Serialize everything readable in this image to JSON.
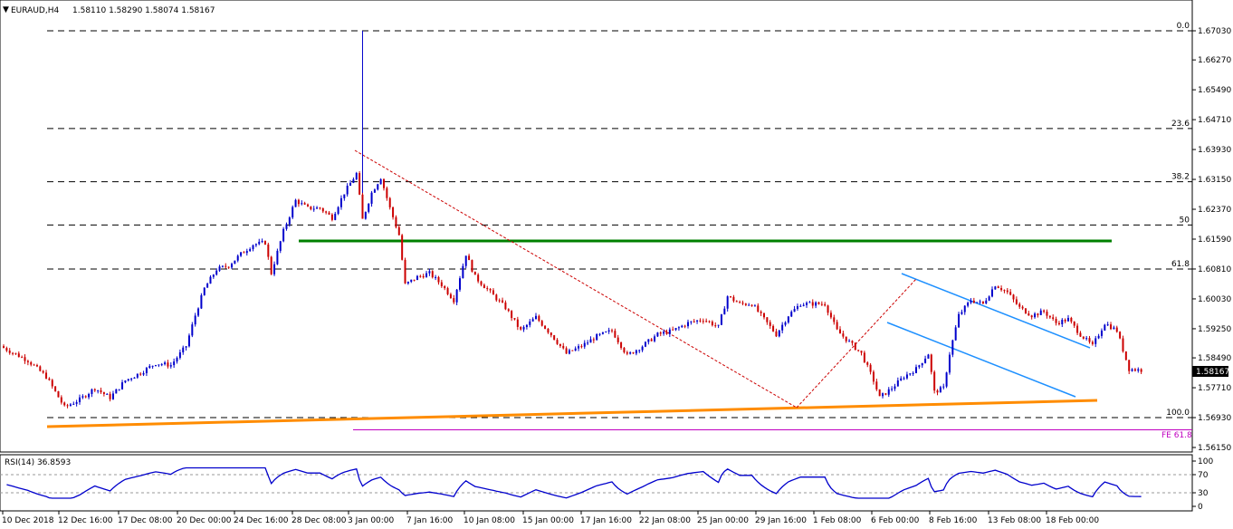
{
  "header": {
    "symbol": "EURAUD,H4",
    "ohlc": "1.58110 1.58290 1.58074 1.58167"
  },
  "rsi_label": "RSI(14) 36.8593",
  "price_box": "1.58167",
  "fe_label": "FE 61.8",
  "colors": {
    "bull_candle": "#0000cc",
    "bear_candle": "#cc0000",
    "support_line": "#ff8c00",
    "resistance_line": "#008000",
    "channel": "#1e90ff",
    "fib_lines": "#000000",
    "fe_line": "#c000c0",
    "rsi_line": "#0000cc",
    "diag_dashed": "#cc0000"
  },
  "chart_data": [
    {
      "type": "candlestick",
      "title": "EURAUD,H4",
      "price_ticks": [
        "1.67030",
        "1.66270",
        "1.65490",
        "1.64710",
        "1.63930",
        "1.63150",
        "1.62370",
        "1.61590",
        "1.60810",
        "1.60030",
        "1.59250",
        "1.58490",
        "1.57710",
        "1.56930",
        "1.56150"
      ],
      "x_ticks": [
        "10 Dec 2018",
        "12 Dec 16:00",
        "17 Dec 08:00",
        "20 Dec 00:00",
        "24 Dec 16:00",
        "28 Dec 08:00",
        "3 Jan 00:00",
        "7 Jan 16:00",
        "10 Jan 08:00",
        "15 Jan 00:00",
        "17 Jan 16:00",
        "22 Jan 08:00",
        "25 Jan 00:00",
        "29 Jan 16:00",
        "1 Feb 08:00",
        "6 Feb 00:00",
        "8 Feb 16:00",
        "13 Feb 08:00",
        "18 Feb 00:00"
      ],
      "ylim": [
        1.5615,
        1.6703
      ],
      "fibonacci": [
        {
          "level": "0.0",
          "price": 1.6703
        },
        {
          "level": "23.6",
          "price": 1.6448
        },
        {
          "level": "38.2",
          "price": 1.6309
        },
        {
          "level": "50",
          "price": 1.6196
        },
        {
          "level": "61.8",
          "price": 1.6081
        },
        {
          "level": "100.0",
          "price": 1.5693
        }
      ],
      "fe_price": 1.5661,
      "last_price": 1.58167,
      "close_path": [
        [
          0,
          1.5875
        ],
        [
          8,
          1.5842
        ],
        [
          14,
          1.58
        ],
        [
          20,
          1.572
        ],
        [
          25,
          1.574
        ],
        [
          30,
          1.577
        ],
        [
          35,
          1.5745
        ],
        [
          40,
          1.579
        ],
        [
          45,
          1.581
        ],
        [
          50,
          1.5835
        ],
        [
          55,
          1.583
        ],
        [
          60,
          1.588
        ],
        [
          63,
          1.596
        ],
        [
          66,
          1.603
        ],
        [
          70,
          1.608
        ],
        [
          74,
          1.609
        ],
        [
          78,
          1.612
        ],
        [
          82,
          1.6145
        ],
        [
          86,
          1.615
        ],
        [
          88,
          1.607
        ],
        [
          92,
          1.618
        ],
        [
          96,
          1.626
        ],
        [
          100,
          1.624
        ],
        [
          104,
          1.624
        ],
        [
          108,
          1.6215
        ],
        [
          112,
          1.628
        ],
        [
          116,
          1.633
        ],
        [
          118,
          1.621
        ],
        [
          121,
          1.628
        ],
        [
          124,
          1.632
        ],
        [
          127,
          1.624
        ],
        [
          130,
          1.617
        ],
        [
          132,
          1.604
        ],
        [
          136,
          1.606
        ],
        [
          140,
          1.607
        ],
        [
          144,
          1.604
        ],
        [
          148,
          1.6
        ],
        [
          152,
          1.612
        ],
        [
          155,
          1.606
        ],
        [
          160,
          1.602
        ],
        [
          165,
          1.598
        ],
        [
          170,
          1.592
        ],
        [
          175,
          1.5955
        ],
        [
          180,
          1.591
        ],
        [
          185,
          1.586
        ],
        [
          190,
          1.588
        ],
        [
          195,
          1.5905
        ],
        [
          200,
          1.592
        ],
        [
          205,
          1.5855
        ],
        [
          210,
          1.588
        ],
        [
          215,
          1.591
        ],
        [
          220,
          1.592
        ],
        [
          225,
          1.594
        ],
        [
          230,
          1.595
        ],
        [
          235,
          1.593
        ],
        [
          238,
          1.601
        ],
        [
          242,
          1.599
        ],
        [
          246,
          1.599
        ],
        [
          250,
          1.595
        ],
        [
          254,
          1.591
        ],
        [
          258,
          1.596
        ],
        [
          262,
          1.599
        ],
        [
          266,
          1.599
        ],
        [
          270,
          1.599
        ],
        [
          274,
          1.592
        ],
        [
          278,
          1.589
        ],
        [
          282,
          1.586
        ],
        [
          286,
          1.579
        ],
        [
          288,
          1.5745
        ],
        [
          292,
          1.577
        ],
        [
          296,
          1.58
        ],
        [
          300,
          1.582
        ],
        [
          304,
          1.586
        ],
        [
          306,
          1.576
        ],
        [
          309,
          1.577
        ],
        [
          311,
          1.586
        ],
        [
          314,
          1.596
        ],
        [
          318,
          1.6
        ],
        [
          322,
          1.599
        ],
        [
          326,
          1.604
        ],
        [
          330,
          1.602
        ],
        [
          334,
          1.598
        ],
        [
          338,
          1.596
        ],
        [
          342,
          1.597
        ],
        [
          346,
          1.594
        ],
        [
          350,
          1.595
        ],
        [
          354,
          1.591
        ],
        [
          358,
          1.588
        ],
        [
          362,
          1.594
        ],
        [
          366,
          1.592
        ],
        [
          370,
          1.582
        ],
        [
          374,
          1.5817
        ]
      ]
    },
    {
      "type": "line",
      "title": "RSI(14) 36.8593",
      "y_ticks": [
        "100",
        "70",
        "30",
        "0"
      ],
      "ylim": [
        0,
        100
      ],
      "current": 36.8593
    }
  ]
}
